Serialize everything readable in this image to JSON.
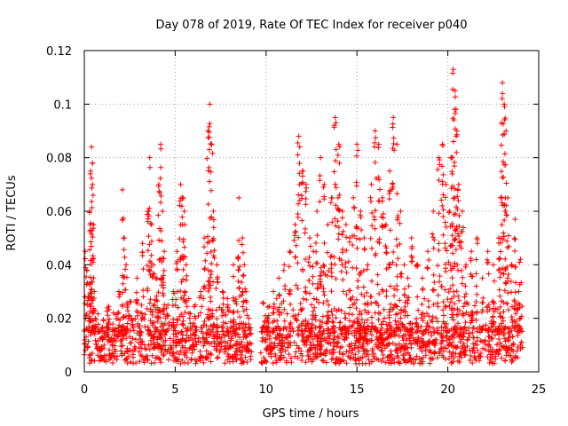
{
  "chart_data": {
    "type": "scatter",
    "title": "Day 078 of 2019, Rate Of TEC Index for receiver p040",
    "xlabel": "GPS time / hours",
    "ylabel": "ROTI / TECUs",
    "xlim": [
      0,
      25
    ],
    "ylim": [
      0,
      0.12
    ],
    "xticks": [
      0,
      5,
      10,
      15,
      20,
      25
    ],
    "xtick_labels": [
      "0",
      "5",
      "10",
      "15",
      "20",
      "25"
    ],
    "yticks": [
      0,
      0.02,
      0.04,
      0.06,
      0.08,
      0.1,
      0.12
    ],
    "ytick_labels": [
      "0",
      "0.02",
      "0.04",
      "0.06",
      "0.08",
      "0.1",
      "0.12"
    ],
    "grid": true,
    "marker": "+",
    "color": "#ff0000",
    "data_gap_hours": [
      9.2,
      9.7
    ],
    "series": [
      {
        "name": "ROTI",
        "x": [
          0.05,
          0.15,
          0.25,
          0.3,
          0.35,
          0.4,
          0.45,
          0.5,
          0.55,
          0.6,
          0.8,
          1.0,
          1.3,
          1.6,
          1.9,
          2.1,
          2.2,
          2.3,
          2.4,
          2.6,
          2.9,
          3.2,
          3.5,
          3.6,
          3.7,
          3.8,
          4.0,
          4.1,
          4.2,
          4.3,
          4.4,
          4.6,
          4.9,
          5.1,
          5.3,
          5.4,
          5.5,
          5.6,
          5.8,
          6.1,
          6.4,
          6.6,
          6.8,
          6.9,
          7.0,
          7.1,
          7.3,
          7.6,
          7.9,
          8.2,
          8.5,
          8.7,
          8.8,
          8.9,
          9.05,
          9.8,
          10.1,
          10.4,
          10.7,
          11.0,
          11.3,
          11.6,
          11.8,
          12.0,
          12.2,
          12.4,
          12.6,
          12.8,
          13.0,
          13.2,
          13.4,
          13.6,
          13.8,
          14.0,
          14.2,
          14.4,
          14.6,
          14.8,
          15.0,
          15.2,
          15.4,
          15.6,
          15.8,
          16.0,
          16.2,
          16.4,
          16.6,
          16.8,
          17.0,
          17.2,
          17.4,
          17.6,
          17.8,
          18.0,
          18.3,
          18.6,
          18.9,
          19.2,
          19.5,
          19.7,
          19.9,
          20.1,
          20.2,
          20.3,
          20.4,
          20.5,
          20.6,
          20.8,
          21.0,
          21.3,
          21.6,
          21.9,
          22.2,
          22.5,
          22.8,
          22.9,
          23.0,
          23.1,
          23.2,
          23.3,
          23.5,
          23.7,
          23.9,
          24.0
        ],
        "y": [
          0.045,
          0.038,
          0.028,
          0.06,
          0.075,
          0.084,
          0.07,
          0.055,
          0.03,
          0.02,
          0.015,
          0.012,
          0.018,
          0.022,
          0.03,
          0.068,
          0.05,
          0.04,
          0.025,
          0.02,
          0.035,
          0.048,
          0.06,
          0.08,
          0.055,
          0.04,
          0.035,
          0.07,
          0.085,
          0.06,
          0.045,
          0.025,
          0.03,
          0.045,
          0.07,
          0.065,
          0.06,
          0.04,
          0.02,
          0.025,
          0.03,
          0.05,
          0.09,
          0.1,
          0.085,
          0.06,
          0.04,
          0.03,
          0.025,
          0.04,
          0.065,
          0.05,
          0.04,
          0.03,
          0.02,
          0.015,
          0.02,
          0.03,
          0.035,
          0.04,
          0.045,
          0.055,
          0.088,
          0.075,
          0.07,
          0.05,
          0.045,
          0.06,
          0.08,
          0.07,
          0.055,
          0.065,
          0.095,
          0.085,
          0.06,
          0.055,
          0.05,
          0.065,
          0.085,
          0.06,
          0.05,
          0.04,
          0.07,
          0.09,
          0.085,
          0.065,
          0.055,
          0.075,
          0.095,
          0.085,
          0.06,
          0.04,
          0.035,
          0.05,
          0.04,
          0.035,
          0.045,
          0.06,
          0.08,
          0.085,
          0.07,
          0.06,
          0.08,
          0.113,
          0.105,
          0.09,
          0.07,
          0.06,
          0.04,
          0.045,
          0.05,
          0.035,
          0.045,
          0.04,
          0.05,
          0.065,
          0.108,
          0.1,
          0.09,
          0.065,
          0.04,
          0.057,
          0.03,
          0.042
        ]
      }
    ]
  }
}
